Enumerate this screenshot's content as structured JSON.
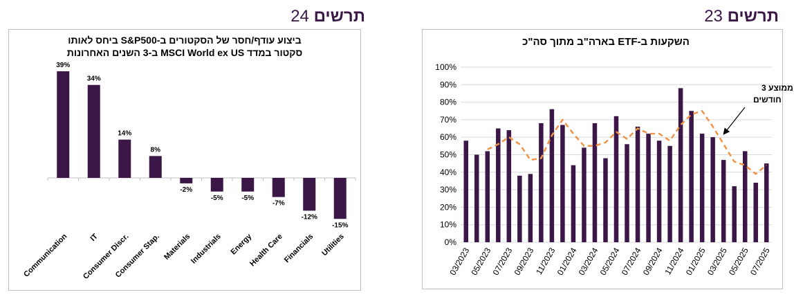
{
  "figures": [
    {
      "id": "left",
      "label": "תרשים",
      "number": "24"
    },
    {
      "id": "right",
      "label": "תרשים",
      "number": "23"
    }
  ],
  "chart_data": [
    {
      "type": "bar",
      "title": [
        "ביצוע עודף/חסר של הסקטורים ב-S&P500 ביחס לאותו",
        "סקטור במדד MSCI World ex US ב-3 השנים האחרונות"
      ],
      "categories": [
        "Communication",
        "IT",
        "Consumer Discr.",
        "Consumer Stap.",
        "Materials",
        "Industrials",
        "Energy",
        "Health Care",
        "Financials",
        "Utilities"
      ],
      "values": [
        39,
        34,
        14,
        8,
        -2,
        -5,
        -5,
        -7,
        -12,
        -15
      ],
      "data_labels": [
        "39%",
        "34%",
        "14%",
        "8%",
        "-2%",
        "-5%",
        "-5%",
        "-7%",
        "-12%",
        "-15%"
      ],
      "ylim": [
        -20,
        42
      ],
      "grid": false,
      "colors": {
        "bar": "#3b1748",
        "axis": "#bfbfbf",
        "text": "#000000"
      }
    },
    {
      "type": "bar",
      "title": "השקעות ב-ETF בארה\"ב מתוך סה\"כ",
      "x": [
        "03/2023",
        "04/2023",
        "05/2023",
        "06/2023",
        "07/2023",
        "08/2023",
        "09/2023",
        "10/2023",
        "11/2023",
        "12/2023",
        "01/2024",
        "02/2024",
        "03/2024",
        "04/2024",
        "05/2024",
        "06/2024",
        "07/2024",
        "08/2024",
        "09/2024",
        "10/2024",
        "11/2024",
        "12/2024",
        "01/2025",
        "02/2025",
        "03/2025",
        "04/2025",
        "05/2025",
        "06/2025",
        "07/2025"
      ],
      "x_tick_labels": [
        "03/2023",
        "05/2023",
        "07/2023",
        "09/2023",
        "11/2023",
        "01/2024",
        "03/2024",
        "05/2024",
        "07/2024",
        "09/2024",
        "11/2024",
        "01/2025",
        "03/2025",
        "05/2025",
        "07/2025"
      ],
      "series": [
        {
          "kind": "bar",
          "values": [
            58,
            50,
            52,
            65,
            64,
            38,
            39,
            68,
            76,
            67,
            44,
            54,
            68,
            48,
            72,
            56,
            66,
            62,
            58,
            55,
            88,
            75,
            62,
            60,
            47,
            32,
            52,
            34,
            45
          ]
        },
        {
          "kind": "line",
          "style": "dashed",
          "name": "ממוצע 3 חודשים",
          "values": [
            null,
            null,
            53,
            56,
            60,
            56,
            47,
            48,
            61,
            70,
            62,
            55,
            55,
            57,
            63,
            59,
            65,
            62,
            62,
            58,
            67,
            73,
            75,
            66,
            56,
            46,
            44,
            39,
            44
          ]
        }
      ],
      "y_tick_labels": [
        "0%",
        "10%",
        "20%",
        "30%",
        "40%",
        "50%",
        "60%",
        "70%",
        "80%",
        "90%",
        "100%"
      ],
      "ylim": [
        0,
        100
      ],
      "grid": true,
      "annotation": [
        "ממוצע 3",
        "חודשים"
      ],
      "colors": {
        "bar": "#3b1748",
        "line": "#f0944a",
        "grid": "#d9d9d9",
        "text": "#000000"
      }
    }
  ]
}
